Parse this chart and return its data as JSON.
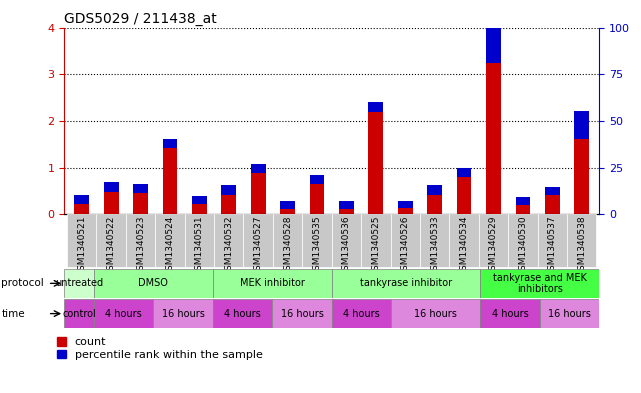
{
  "title": "GDS5029 / 211438_at",
  "samples": [
    "GSM1340521",
    "GSM1340522",
    "GSM1340523",
    "GSM1340524",
    "GSM1340531",
    "GSM1340532",
    "GSM1340527",
    "GSM1340528",
    "GSM1340535",
    "GSM1340536",
    "GSM1340525",
    "GSM1340526",
    "GSM1340533",
    "GSM1340534",
    "GSM1340529",
    "GSM1340530",
    "GSM1340537",
    "GSM1340538"
  ],
  "red_values": [
    0.22,
    0.48,
    0.45,
    1.42,
    0.22,
    0.42,
    0.88,
    0.12,
    0.65,
    0.12,
    2.2,
    0.13,
    0.42,
    0.8,
    3.25,
    0.2,
    0.42,
    1.62
  ],
  "blue_values_pct": [
    5,
    5,
    5,
    5,
    4,
    5,
    5,
    4,
    5,
    4,
    5,
    4,
    5,
    5,
    25,
    4,
    4,
    15
  ],
  "ylim_left": [
    0,
    4
  ],
  "ylim_right": [
    0,
    100
  ],
  "yticks_left": [
    0,
    1,
    2,
    3,
    4
  ],
  "yticks_right": [
    0,
    25,
    50,
    75,
    100
  ],
  "left_axis_color": "#cc0000",
  "right_axis_color": "#0000cc",
  "bar_red": "#cc0000",
  "bar_blue": "#0000cc",
  "bar_width": 0.5,
  "background_color": "#ffffff",
  "grid_color": "#000000",
  "protocol_row": [
    {
      "label": "untreated",
      "start": 0,
      "end": 1,
      "color": "#ccffcc"
    },
    {
      "label": "DMSO",
      "start": 1,
      "end": 5,
      "color": "#99ff99"
    },
    {
      "label": "MEK inhibitor",
      "start": 5,
      "end": 9,
      "color": "#99ff99"
    },
    {
      "label": "tankyrase inhibitor",
      "start": 9,
      "end": 14,
      "color": "#99ff99"
    },
    {
      "label": "tankyrase and MEK\ninhibitors",
      "start": 14,
      "end": 18,
      "color": "#44ff44"
    }
  ],
  "time_row": [
    {
      "label": "control",
      "start": 0,
      "end": 1,
      "color": "#cc44cc"
    },
    {
      "label": "4 hours",
      "start": 1,
      "end": 3,
      "color": "#cc44cc"
    },
    {
      "label": "16 hours",
      "start": 3,
      "end": 5,
      "color": "#dd88dd"
    },
    {
      "label": "4 hours",
      "start": 5,
      "end": 7,
      "color": "#cc44cc"
    },
    {
      "label": "16 hours",
      "start": 7,
      "end": 9,
      "color": "#dd88dd"
    },
    {
      "label": "4 hours",
      "start": 9,
      "end": 11,
      "color": "#cc44cc"
    },
    {
      "label": "16 hours",
      "start": 11,
      "end": 14,
      "color": "#dd88dd"
    },
    {
      "label": "4 hours",
      "start": 14,
      "end": 16,
      "color": "#cc44cc"
    },
    {
      "label": "16 hours",
      "start": 16,
      "end": 18,
      "color": "#dd88dd"
    }
  ],
  "sample_bg_color": "#c8c8c8",
  "legend_red_label": "count",
  "legend_blue_label": "percentile rank within the sample"
}
